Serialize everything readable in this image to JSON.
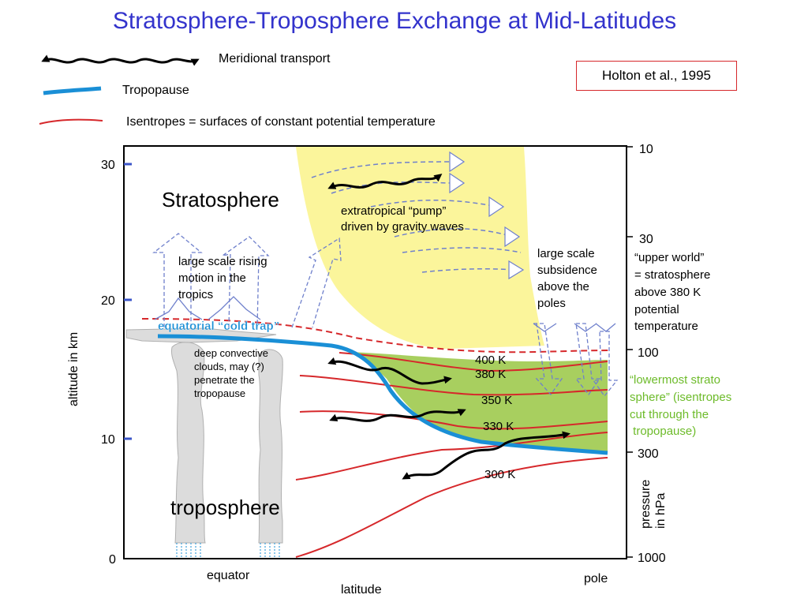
{
  "title": "Stratosphere-Troposphere Exchange at Mid-Latitudes",
  "legend": {
    "meridional": "Meridional transport",
    "tropopause": "Tropopause",
    "isentropes": "Isentropes = surfaces of constant potential temperature"
  },
  "citation": "Holton et al., 1995",
  "colors": {
    "title": "#3333cc",
    "tropopause": "#1a8fd6",
    "isentrope": "#d6282b",
    "stratosphere_fill": "#fbf59b",
    "lowermost_fill": "#a8cf5f",
    "lowermost_text": "#6dbb2a",
    "flow_arrows": "#7f8fd0"
  },
  "left_axis": {
    "label": "altitude in km",
    "ticks": [
      "30",
      "20",
      "10",
      "0"
    ]
  },
  "right_axis": {
    "label_line1": "pressure",
    "label_line2": "in hPa",
    "ticks": [
      "10",
      "30",
      "100",
      "300",
      "1000"
    ]
  },
  "x_axis": {
    "label": "latitude",
    "left": "equator",
    "right": "pole"
  },
  "regions": {
    "stratosphere": "Stratosphere",
    "troposphere": "troposphere"
  },
  "annotations": {
    "pump": [
      "extratropical “pump”",
      "driven by gravity waves"
    ],
    "rising": [
      "large scale rising",
      "motion in the",
      "tropics"
    ],
    "subsidence": [
      "large scale",
      "subsidence",
      "above the",
      "poles"
    ],
    "cold_trap": "equatorial “cold trap”",
    "convective": [
      "deep convective",
      "clouds, may (?)",
      "penetrate the",
      "tropopause"
    ],
    "upper_world": [
      "“upper world”",
      "= stratosphere",
      "above 380 K",
      "potential",
      "temperature"
    ],
    "lowermost": [
      "“lowermost strato",
      "sphere” (isentropes",
      "cut through the",
      " tropopause)"
    ]
  },
  "isentrope_labels": [
    "400 K",
    "380 K",
    "350 K",
    "330 K",
    "300 K"
  ]
}
